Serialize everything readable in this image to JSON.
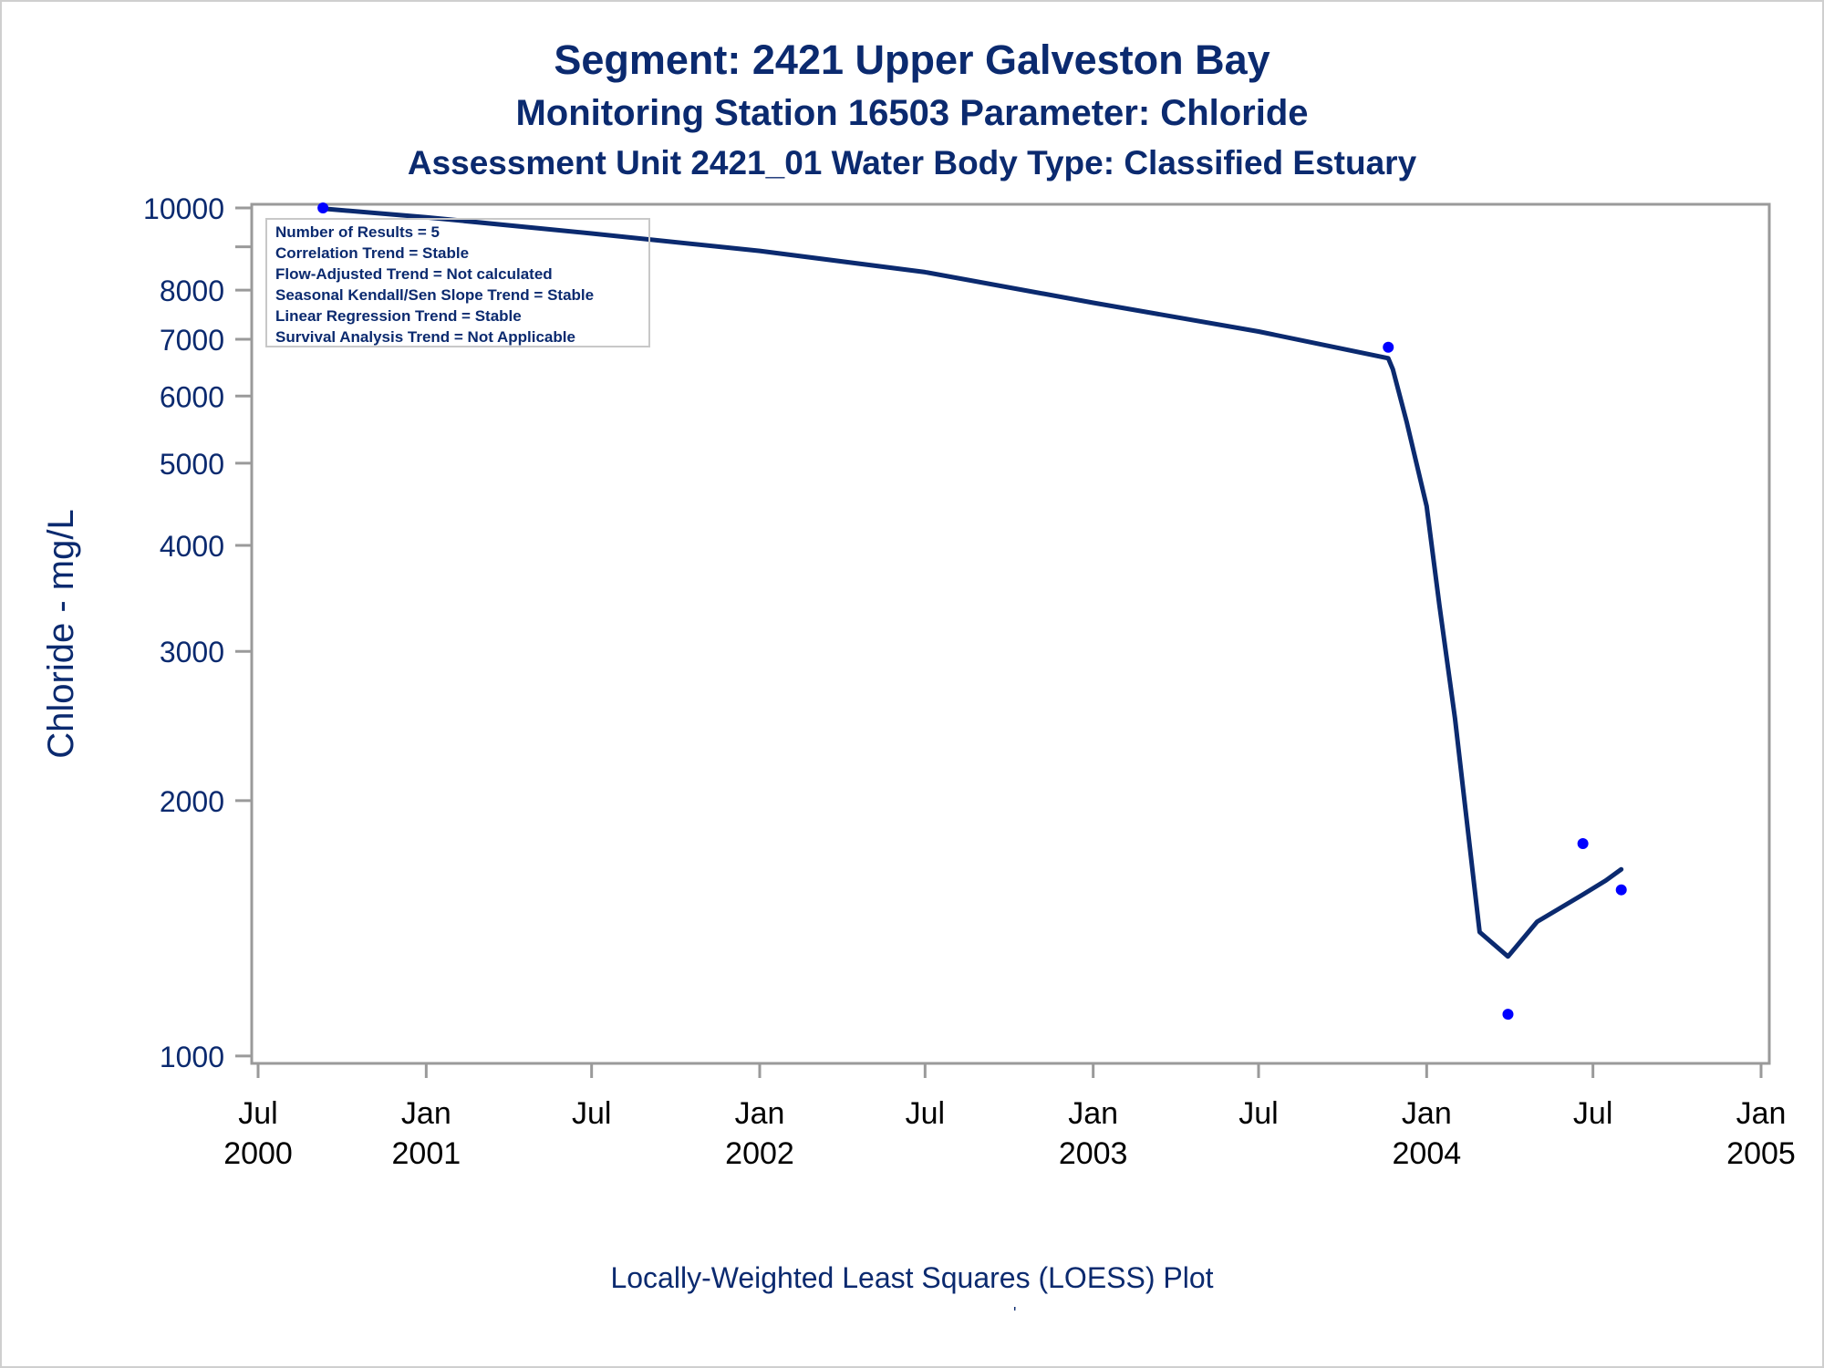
{
  "titles": {
    "line1": "Segment: 2421  Upper Galveston Bay",
    "line2": "Monitoring Station 16503 Parameter: Chloride",
    "line3": "Assessment Unit 2421_01   Water Body Type: Classified Estuary"
  },
  "footnote": "Locally-Weighted Least Squares (LOESS) Plot",
  "footnote_mark": "'",
  "colors": {
    "text": "#0b2a6f",
    "line": "#0b2a6f",
    "points": "#0000ff",
    "axis": "#9a9a9a",
    "frame": "#cfcfcf"
  },
  "chart_data": {
    "type": "scatter",
    "title": "Segment: 2421  Upper Galveston Bay",
    "ylabel": "Chloride - mg/L",
    "xlabel": "",
    "y_scale": "log",
    "ylim": [
      980,
      10100
    ],
    "xlim": [
      "2000-06-24",
      "2005-01-10"
    ],
    "y_ticks": [
      1000,
      2000,
      3000,
      4000,
      5000,
      6000,
      7000,
      8000,
      10000
    ],
    "y_minor_ticks": [
      9000
    ],
    "x_ticks": [
      {
        "date": "2000-07-01",
        "line1": "Jul",
        "line2": "2000"
      },
      {
        "date": "2001-01-01",
        "line1": "Jan",
        "line2": "2001"
      },
      {
        "date": "2001-07-01",
        "line1": "Jul",
        "line2": ""
      },
      {
        "date": "2002-01-01",
        "line1": "Jan",
        "line2": "2002"
      },
      {
        "date": "2002-07-01",
        "line1": "Jul",
        "line2": ""
      },
      {
        "date": "2003-01-01",
        "line1": "Jan",
        "line2": "2003"
      },
      {
        "date": "2003-07-01",
        "line1": "Jul",
        "line2": ""
      },
      {
        "date": "2004-01-01",
        "line1": "Jan",
        "line2": "2004"
      },
      {
        "date": "2004-07-01",
        "line1": "Jul",
        "line2": ""
      },
      {
        "date": "2005-01-01",
        "line1": "Jan",
        "line2": "2005"
      }
    ],
    "points": [
      {
        "date": "2000-09-10",
        "value": 10000
      },
      {
        "date": "2003-11-20",
        "value": 6850
      },
      {
        "date": "2004-03-30",
        "value": 1120
      },
      {
        "date": "2004-06-20",
        "value": 1780
      },
      {
        "date": "2004-08-01",
        "value": 1570
      }
    ],
    "loess_curve": [
      {
        "date": "2000-09-10",
        "value": 9980
      },
      {
        "date": "2001-01-01",
        "value": 9750
      },
      {
        "date": "2001-07-01",
        "value": 9330
      },
      {
        "date": "2002-01-01",
        "value": 8900
      },
      {
        "date": "2002-07-01",
        "value": 8400
      },
      {
        "date": "2003-01-01",
        "value": 7730
      },
      {
        "date": "2003-07-01",
        "value": 7150
      },
      {
        "date": "2003-11-20",
        "value": 6650
      },
      {
        "date": "2003-11-25",
        "value": 6450
      },
      {
        "date": "2003-12-10",
        "value": 5600
      },
      {
        "date": "2004-01-01",
        "value": 4450
      },
      {
        "date": "2004-01-15",
        "value": 3400
      },
      {
        "date": "2004-02-01",
        "value": 2500
      },
      {
        "date": "2004-02-15",
        "value": 1850
      },
      {
        "date": "2004-02-28",
        "value": 1400
      },
      {
        "date": "2004-03-30",
        "value": 1310
      },
      {
        "date": "2004-05-01",
        "value": 1440
      },
      {
        "date": "2004-06-20",
        "value": 1550
      },
      {
        "date": "2004-07-15",
        "value": 1610
      },
      {
        "date": "2004-08-01",
        "value": 1660
      }
    ],
    "stats_box": {
      "location": "top-left",
      "lines": [
        "Number of Results = 5",
        "Correlation Trend = Stable",
        "Flow-Adjusted Trend = Not calculated",
        "Seasonal Kendall/Sen Slope Trend = Stable",
        "Linear Regression Trend = Stable",
        "Survival Analysis Trend = Not Applicable"
      ]
    }
  }
}
